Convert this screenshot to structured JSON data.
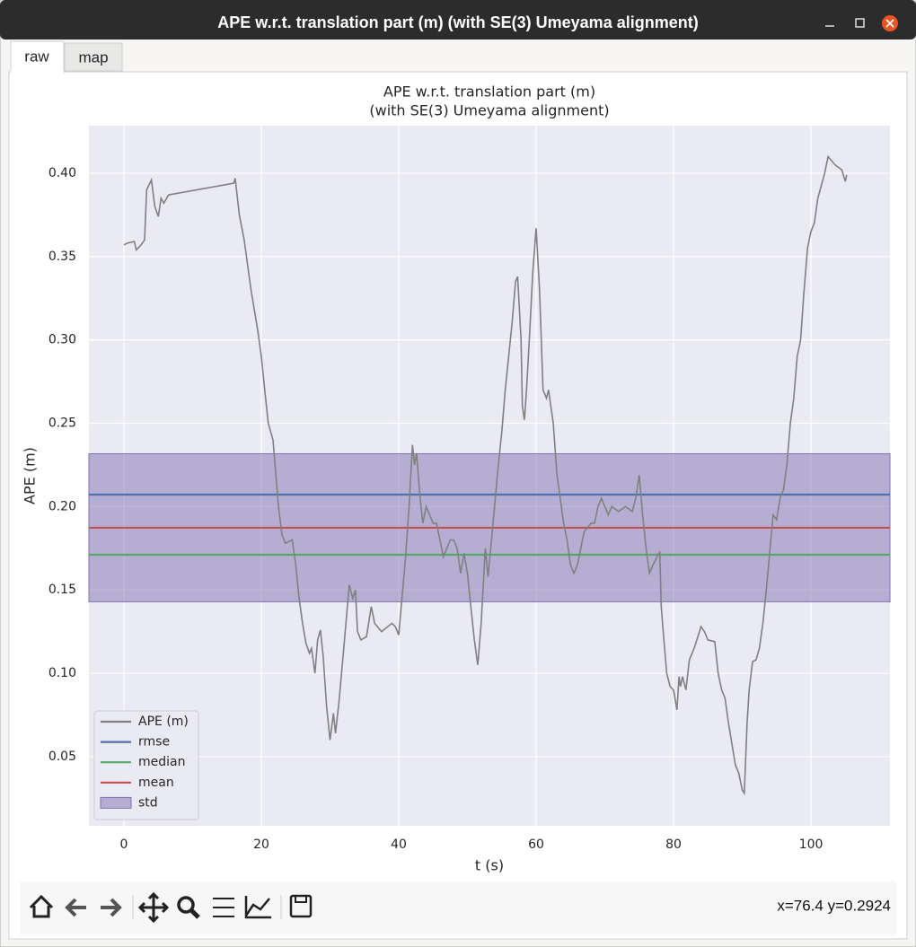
{
  "window": {
    "title": "APE w.r.t. translation part (m) (with SE(3) Umeyama alignment)",
    "tabs": [
      "raw",
      "map"
    ],
    "status": "x=76.4 y=0.2924"
  },
  "chart_data": {
    "type": "line",
    "title": [
      "APE w.r.t. translation part (m)",
      "(with SE(3) Umeyama alignment)"
    ],
    "xlabel": "t (s)",
    "ylabel": "APE (m)",
    "xlim": [
      -5.1,
      111.5
    ],
    "ylim": [
      0.0085,
      0.4285
    ],
    "xticks": [
      0,
      20,
      40,
      60,
      80,
      100
    ],
    "yticks": [
      0.05,
      {
        "value": 0.1,
        "label": "0.10"
      },
      0.15,
      {
        "value": 0.2,
        "label": "0.20"
      },
      0.25,
      {
        "value": 0.3,
        "label": "0.30"
      },
      0.35,
      {
        "value": 0.4,
        "label": "0.40"
      }
    ],
    "grid": true,
    "legend": "lower left",
    "series": [
      {
        "name": "APE (m)",
        "color": "#808080",
        "x": [
          0,
          0.5,
          1.5,
          1.8,
          2.5,
          3,
          3.3,
          4,
          4.5,
          5,
          5.4,
          5.8,
          6.5,
          16,
          16.2,
          16.8,
          17.5,
          18.5,
          19.5,
          20,
          20.5,
          21,
          21.7,
          22.5,
          23,
          23.5,
          24.5,
          25,
          25.5,
          26,
          26.5,
          27,
          27.3,
          27.8,
          28.2,
          28.6,
          29,
          29.5,
          30,
          30.5,
          30.8,
          31.3,
          32,
          32.8,
          33.3,
          33.7,
          34,
          34.5,
          35.3,
          36,
          36.5,
          37.5,
          39,
          39.5,
          40,
          41,
          41.5,
          42,
          42.3,
          42.6,
          43,
          43.5,
          44,
          45,
          45.5,
          46.5,
          47.5,
          48,
          48.5,
          49,
          49.5,
          50,
          50.5,
          51,
          51.5,
          52,
          52.6,
          53,
          53.5,
          54.5,
          55,
          55.5,
          56.5,
          57,
          57.3,
          57.8,
          58,
          58.3,
          58.6,
          59,
          59.5,
          60,
          60.5,
          61,
          61.5,
          61.8,
          62.5,
          63,
          64,
          64.5,
          65,
          65.5,
          66,
          66.5,
          67,
          68,
          68.5,
          69,
          69.5,
          70.5,
          71,
          72,
          73,
          74,
          74.5,
          75,
          75.5,
          76,
          76.5,
          77,
          78,
          78.2,
          78.5,
          79,
          79.5,
          80,
          80.5,
          80.8,
          81,
          81.3,
          81.8,
          82.3,
          83,
          84,
          84.5,
          85,
          86,
          86.5,
          87,
          87.5,
          88,
          89,
          89.5,
          90,
          90.3,
          90.7,
          91,
          91.5,
          92,
          92.5,
          93,
          93.5,
          94.5,
          95,
          95.5,
          96,
          96.5,
          97,
          97.5,
          98,
          98.5,
          99,
          99.5,
          100,
          100.5,
          101,
          102,
          102.5,
          103.5,
          104.5,
          105,
          105.2
        ],
        "values": [
          0.357,
          0.358,
          0.359,
          0.354,
          0.357,
          0.36,
          0.39,
          0.396,
          0.38,
          0.374,
          0.385,
          0.382,
          0.387,
          0.394,
          0.397,
          0.375,
          0.36,
          0.33,
          0.305,
          0.29,
          0.27,
          0.25,
          0.24,
          0.2,
          0.183,
          0.178,
          0.18,
          0.165,
          0.145,
          0.13,
          0.118,
          0.112,
          0.115,
          0.1,
          0.12,
          0.126,
          0.11,
          0.08,
          0.06,
          0.076,
          0.064,
          0.083,
          0.115,
          0.153,
          0.145,
          0.15,
          0.125,
          0.12,
          0.122,
          0.14,
          0.13,
          0.125,
          0.13,
          0.128,
          0.123,
          0.17,
          0.2,
          0.237,
          0.225,
          0.232,
          0.21,
          0.19,
          0.2,
          0.19,
          0.19,
          0.17,
          0.18,
          0.18,
          0.175,
          0.16,
          0.172,
          0.16,
          0.14,
          0.12,
          0.105,
          0.13,
          0.175,
          0.158,
          0.18,
          0.225,
          0.245,
          0.27,
          0.31,
          0.335,
          0.338,
          0.3,
          0.26,
          0.252,
          0.27,
          0.3,
          0.34,
          0.367,
          0.33,
          0.27,
          0.265,
          0.27,
          0.25,
          0.22,
          0.19,
          0.18,
          0.165,
          0.16,
          0.165,
          0.175,
          0.185,
          0.19,
          0.19,
          0.2,
          0.205,
          0.195,
          0.2,
          0.197,
          0.2,
          0.197,
          0.205,
          0.219,
          0.195,
          0.175,
          0.16,
          0.165,
          0.173,
          0.14,
          0.125,
          0.1,
          0.092,
          0.09,
          0.078,
          0.098,
          0.092,
          0.098,
          0.09,
          0.108,
          0.115,
          0.128,
          0.125,
          0.12,
          0.119,
          0.1,
          0.09,
          0.085,
          0.07,
          0.045,
          0.04,
          0.03,
          0.028,
          0.07,
          0.09,
          0.107,
          0.108,
          0.115,
          0.13,
          0.15,
          0.195,
          0.192,
          0.205,
          0.21,
          0.225,
          0.25,
          0.265,
          0.29,
          0.3,
          0.33,
          0.355,
          0.365,
          0.37,
          0.385,
          0.4,
          0.41,
          0.405,
          0.402,
          0.395,
          0.399
        ]
      }
    ],
    "stats": [
      {
        "name": "rmse",
        "color": "#4c72b0",
        "value": 0.2072
      },
      {
        "name": "median",
        "color": "#55a868",
        "value": 0.1711
      },
      {
        "name": "mean",
        "color": "#c44e52",
        "value": 0.1873
      }
    ],
    "std": {
      "name": "std",
      "color": "#8172b2",
      "value": 0.0444
    }
  }
}
